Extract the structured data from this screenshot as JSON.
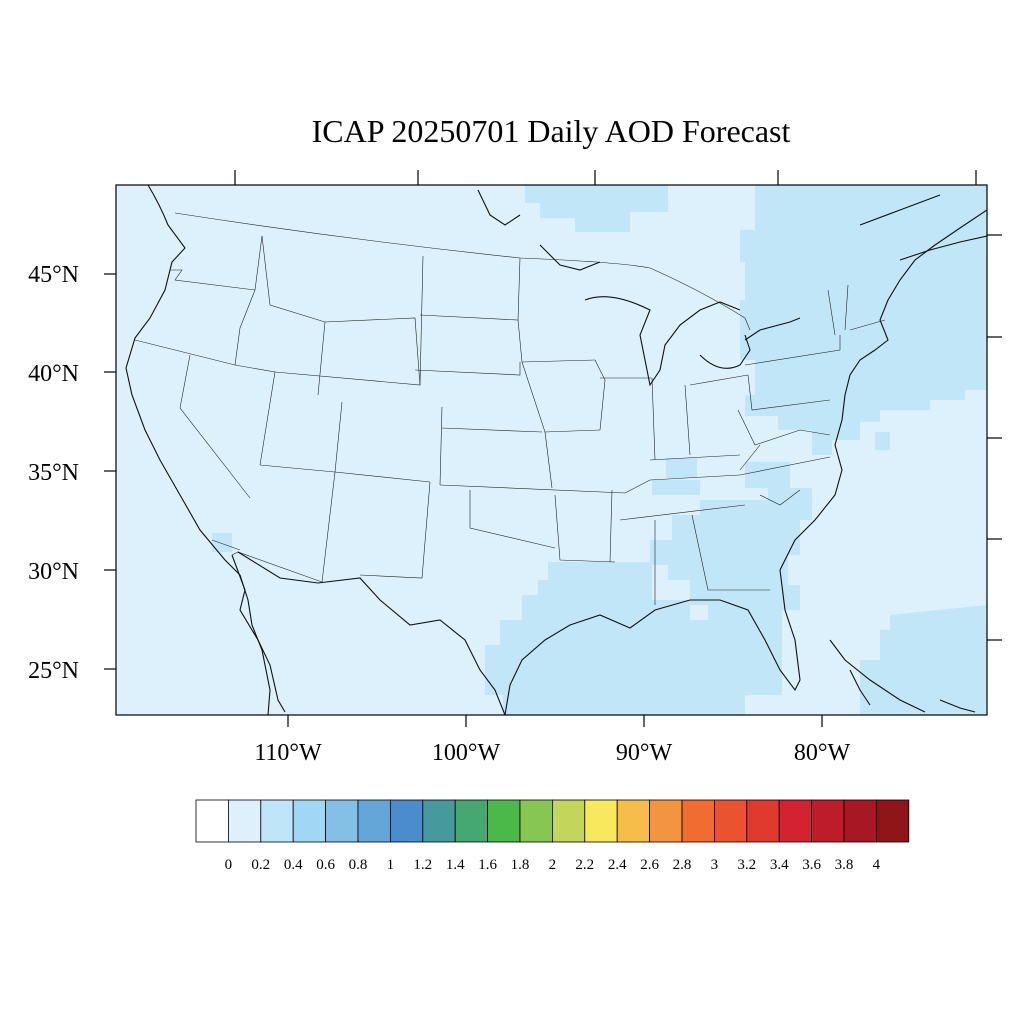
{
  "title": "ICAP 20250701 Daily AOD Forecast",
  "map": {
    "region": "Contiguous United States",
    "projection": "Lambert conformal",
    "lat_ticks": [
      {
        "lat": 45,
        "label": "45°N"
      },
      {
        "lat": 40,
        "label": "40°N"
      },
      {
        "lat": 35,
        "label": "35°N"
      },
      {
        "lat": 30,
        "label": "30°N"
      },
      {
        "lat": 25,
        "label": "25°N"
      }
    ],
    "lon_ticks": [
      {
        "lon": -110,
        "label": "110°W"
      },
      {
        "lon": -100,
        "label": "100°W"
      },
      {
        "lon": -90,
        "label": "90°W"
      },
      {
        "lon": -80,
        "label": "80°W"
      }
    ],
    "field_colors": {
      "background_bin": "#dcf1fb",
      "elevated_bin": "#c1e6f8"
    }
  },
  "colorbar": {
    "labels": [
      "0",
      "0.2",
      "0.4",
      "0.6",
      "0.8",
      "1",
      "1.2",
      "1.4",
      "1.6",
      "1.8",
      "2",
      "2.2",
      "2.4",
      "2.6",
      "2.8",
      "3",
      "3.2",
      "3.4",
      "3.6",
      "3.8",
      "4"
    ],
    "colors": [
      "#ffffff",
      "#dcf1fb",
      "#bfe6f8",
      "#a0d8f3",
      "#84bfe6",
      "#65a6d9",
      "#4a8ccc",
      "#469a9e",
      "#45a872",
      "#4bb84a",
      "#88c653",
      "#c3d65b",
      "#f7e85e",
      "#f6bd4a",
      "#f39540",
      "#f06c30",
      "#ea5330",
      "#e03a2e",
      "#d32330",
      "#bd1c2a",
      "#a81824",
      "#8f1519"
    ]
  }
}
